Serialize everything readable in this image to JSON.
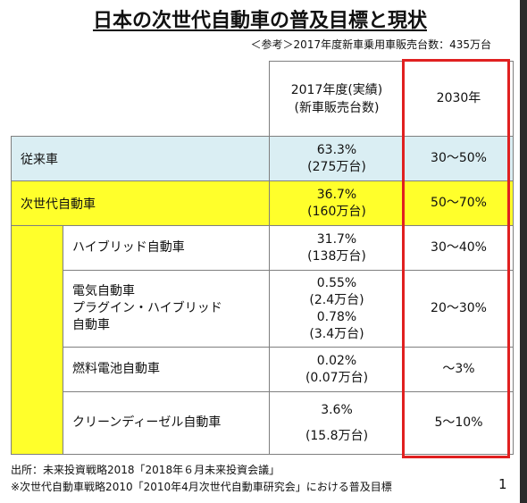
{
  "title": "日本の次世代自動車の普及目標と現状",
  "reference_note": "＜参考＞2017年度新車乗用車販売台数：435万台",
  "table": {
    "header": {
      "col_2017_line1": "2017年度(実績)",
      "col_2017_line2": "(新車販売台数)",
      "col_2030": "2030年"
    },
    "rows": {
      "conventional": {
        "label": "従来車",
        "share": "63.3%",
        "units": "(275万台)",
        "target": "30～50%"
      },
      "next_gen": {
        "label": "次世代自動車",
        "share": "36.7%",
        "units": "(160万台)",
        "target": "50～70%"
      },
      "hybrid": {
        "label": "ハイブリッド自動車",
        "share": "31.7%",
        "units": "(138万台)",
        "target": "30～40%"
      },
      "ev_phev": {
        "label_line1": "電気自動車",
        "label_line2": "プラグイン・ハイブリッド",
        "label_line3": "自動車",
        "share1": "0.55%",
        "units1": "(2.4万台)",
        "share2": "0.78%",
        "units2": "(3.4万台)",
        "target": "20～30%"
      },
      "fuel_cell": {
        "label": "燃料電池自動車",
        "share": "0.02%",
        "units": "(0.07万台)",
        "target": "～3%"
      },
      "clean_diesel": {
        "label": "クリーンディーゼル自動車",
        "share": "3.6%",
        "units": "(15.8万台)",
        "target": "5～10%"
      }
    }
  },
  "footer": {
    "source": "出所：未来投資戦略2018「2018年６月未来投資会議」",
    "note": "※次世代自動車戦略2010「2010年4月次世代自動車研究会」における普及目標"
  },
  "page_number": "1",
  "colors": {
    "blue_row": "#daeef3",
    "yellow_row": "#ffff2b",
    "highlight_frame": "#e02020"
  }
}
